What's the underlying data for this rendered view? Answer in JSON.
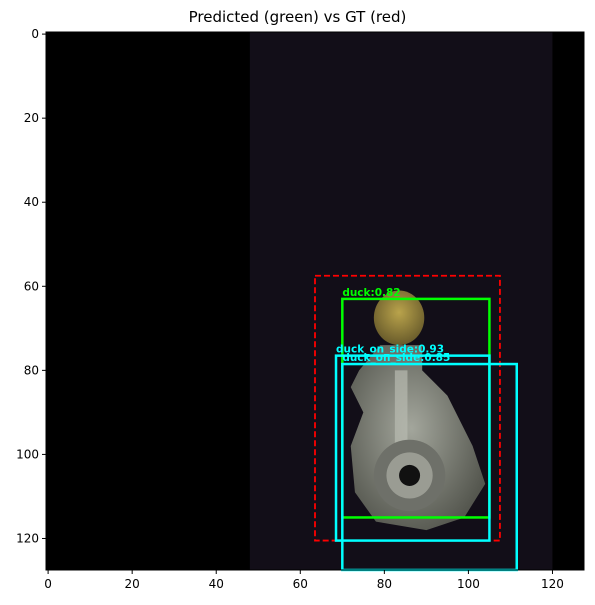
{
  "title": "Predicted (green) vs GT (red)",
  "image": {
    "extent_x": [
      0,
      128
    ],
    "extent_y": [
      0,
      128
    ],
    "letterbox_left_end": 48.5,
    "scene_right_end": 120.5,
    "colors": {
      "letterbox": "#000000",
      "scene": "#120e18",
      "duck": "#a48f3c",
      "body": "#8a8d84",
      "hole": "#111111"
    }
  },
  "x_ticks": [
    "0",
    "20",
    "40",
    "60",
    "80",
    "100",
    "120"
  ],
  "y_ticks": [
    "0",
    "20",
    "40",
    "60",
    "80",
    "100",
    "120"
  ],
  "boxes": [
    {
      "role": "gt",
      "color": "#ff0000",
      "style": "dashed",
      "x0": 63.5,
      "y0": 57.5,
      "x1": 107.5,
      "y1": 120.5,
      "label": ""
    },
    {
      "role": "pred",
      "color": "#00ff00",
      "style": "solid",
      "x0": 70,
      "y0": 63,
      "x1": 105,
      "y1": 115,
      "label": "duck:0.82"
    },
    {
      "role": "pred",
      "color": "#00ffff",
      "style": "solid",
      "x0": 68.5,
      "y0": 76.5,
      "x1": 105,
      "y1": 120.5,
      "label": "duck_on_side:0.93"
    },
    {
      "role": "pred",
      "color": "#00ffff",
      "style": "solid",
      "x0": 70,
      "y0": 78.5,
      "x1": 111.5,
      "y1": 127.5,
      "label": "duck_on_side:0.85"
    }
  ]
}
